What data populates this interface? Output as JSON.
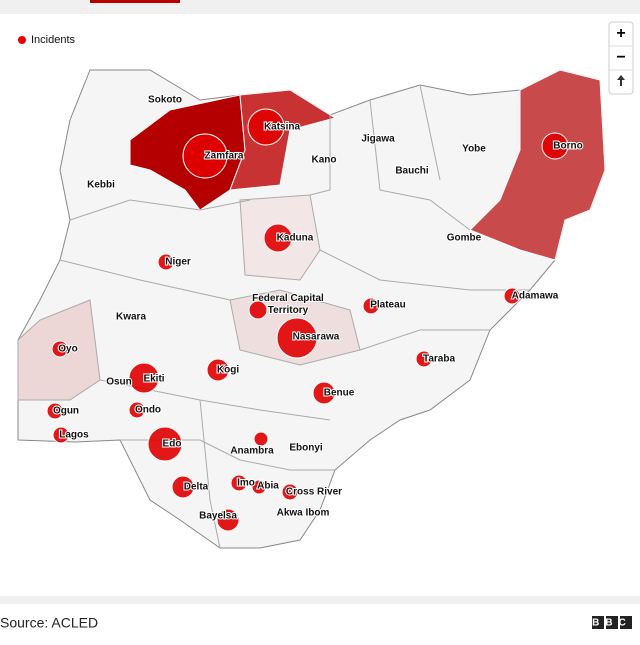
{
  "map": {
    "legend": "Incidents",
    "controls": [
      "+",
      "−"
    ],
    "states": [
      "Sokoto",
      "Katsina",
      "Zamfara",
      "Jigawa",
      "Kano",
      "Yobe",
      "Borno",
      "Bauchi",
      "Kebbi",
      "Kaduna",
      "Gombe",
      "Niger",
      "Federal Capital Territory",
      "Plateau",
      "Adamawa",
      "Kwara",
      "Nasarawa",
      "Oyo",
      "Taraba",
      "Osun",
      "Ekiti",
      "Kogi",
      "Benue",
      "Ogun",
      "Ondo",
      "Lagos",
      "Edo",
      "Anambra",
      "Ebonyi",
      "Delta",
      "Imo",
      "Abia",
      "Cross River",
      "Akwa Ibom",
      "Bayelsa"
    ]
  },
  "footer": {
    "source": "Source: ACLED",
    "logo": "BBC"
  }
}
